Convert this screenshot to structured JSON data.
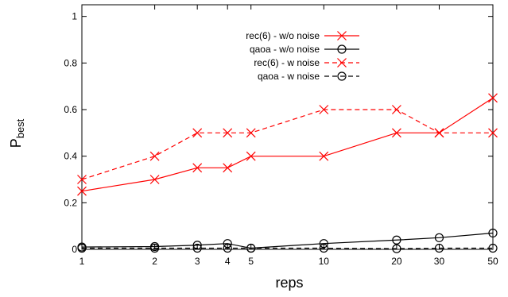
{
  "chart_data": {
    "type": "line",
    "x_scale": "log",
    "x": [
      1,
      2,
      3,
      4,
      5,
      10,
      20,
      30,
      50
    ],
    "x_tick_labels": [
      "1",
      "2",
      "3",
      "4",
      "5",
      "10",
      "20",
      "30",
      "50"
    ],
    "xlim": [
      1,
      50
    ],
    "ylim": [
      0,
      1.05
    ],
    "y_ticks": [
      0,
      0.2,
      0.4,
      0.6,
      0.8,
      1
    ],
    "y_tick_labels": [
      "0",
      "0.2",
      "0.4",
      "0.6",
      "0.8",
      "1"
    ],
    "xlabel": "reps",
    "ylabel_main": "P",
    "ylabel_sub": "best",
    "grid": false,
    "legend_position": "top-right",
    "series": [
      {
        "name": "rec(6) - w/o noise",
        "color": "#ff0000",
        "dash": "solid",
        "marker": "cross",
        "values": [
          0.25,
          0.3,
          0.35,
          0.35,
          0.4,
          0.4,
          0.5,
          0.5,
          0.65
        ]
      },
      {
        "name": "qaoa - w/o noise",
        "color": "#000000",
        "dash": "solid",
        "marker": "circle",
        "values": [
          0.01,
          0.012,
          0.018,
          0.025,
          0.005,
          0.025,
          0.04,
          0.05,
          0.07
        ]
      },
      {
        "name": "rec(6) - w noise",
        "color": "#ff0000",
        "dash": "dashed",
        "marker": "cross",
        "values": [
          0.3,
          0.4,
          0.5,
          0.5,
          0.5,
          0.6,
          0.6,
          0.5,
          0.5
        ]
      },
      {
        "name": "qaoa - w noise",
        "color": "#000000",
        "dash": "dashed",
        "marker": "circle",
        "values": [
          0.005,
          0.005,
          0.005,
          0.005,
          0.005,
          0.005,
          0.003,
          0.005,
          0.005
        ]
      }
    ]
  }
}
